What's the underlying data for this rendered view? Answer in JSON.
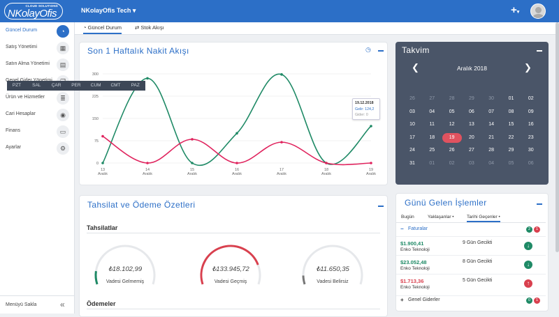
{
  "header": {
    "logo_text": "NKolayOfis",
    "logo_tagline": "CLOUD SOLUTIONS",
    "company": "NKolayOfis Tech",
    "add_label": "+"
  },
  "sidebar": {
    "items": [
      {
        "label": "Güncel Durum",
        "icon": "dashboard-icon",
        "glyph": "◔",
        "active": true
      },
      {
        "label": "Satış Yönetimi",
        "icon": "calculator-icon",
        "glyph": "▦",
        "active": false
      },
      {
        "label": "Satın Alma Yönetimi",
        "icon": "document-icon",
        "glyph": "▤",
        "active": false
      },
      {
        "label": "Genel Gider Yönetimi",
        "icon": "copy-icon",
        "glyph": "❐",
        "active": false
      },
      {
        "label": "Ürün ve Hizmetler",
        "icon": "database-icon",
        "glyph": "≣",
        "active": false
      },
      {
        "label": "Cari Hesaplar",
        "icon": "eye-icon",
        "glyph": "◉",
        "active": false
      },
      {
        "label": "Finans",
        "icon": "money-icon",
        "glyph": "▭",
        "active": false
      },
      {
        "label": "Ayarlar",
        "icon": "gears-icon",
        "glyph": "⚙",
        "active": false
      }
    ],
    "collapse_label": "Menüyü Sakla"
  },
  "tabs": [
    {
      "label": "◔ Güncel Durum",
      "active": true
    },
    {
      "label": "⇄ Stok Akışı",
      "active": false
    }
  ],
  "cashflow": {
    "title": "Son 1 Haftalık Nakit Akışı",
    "tooltip": {
      "date": "19.12.2018",
      "gelir": "Gelir: 124,2",
      "gider": "Gider: 0"
    }
  },
  "chart_data": {
    "type": "line",
    "x": [
      "13 Aralık",
      "14 Aralık",
      "15 Aralık",
      "16 Aralık",
      "17 Aralık",
      "18 Aralık",
      "19 Aralık"
    ],
    "yticks": [
      0,
      75,
      150,
      225,
      300
    ],
    "ylim": [
      0,
      300
    ],
    "series": [
      {
        "name": "Gelir",
        "color": "#1f8a66",
        "values": [
          0,
          285,
          0,
          100,
          298,
          0,
          124.2
        ]
      },
      {
        "name": "Gider",
        "color": "#e0245e",
        "values": [
          90,
          0,
          80,
          0,
          70,
          0,
          0
        ]
      }
    ]
  },
  "calendar": {
    "title": "Takvim",
    "month": "Aralık 2018",
    "days": [
      "PZT",
      "SAL",
      "ÇAR",
      "PER",
      "CUM",
      "CMT",
      "PAZ"
    ],
    "weeks": [
      [
        "26",
        "27",
        "28",
        "29",
        "30",
        "01",
        "02"
      ],
      [
        "03",
        "04",
        "05",
        "06",
        "07",
        "08",
        "09"
      ],
      [
        "10",
        "11",
        "12",
        "13",
        "14",
        "15",
        "16"
      ],
      [
        "17",
        "18",
        "19",
        "20",
        "21",
        "22",
        "23"
      ],
      [
        "24",
        "25",
        "26",
        "27",
        "28",
        "29",
        "30"
      ],
      [
        "31",
        "01",
        "02",
        "03",
        "04",
        "05",
        "06"
      ]
    ],
    "today": "19"
  },
  "summary": {
    "title": "Tahsilat ve Ödeme Özetleri",
    "collections_title": "Tahsilatlar",
    "payments_title": "Ödemeler",
    "gauges": [
      {
        "value": "₺18.102,99",
        "label": "Vadesi Gelmemiş",
        "color": "#1f8a66",
        "fraction": 0.12
      },
      {
        "value": "₺133.945,72",
        "label": "Vadesi Geçmiş",
        "color": "#d9404e",
        "fraction": 0.82
      },
      {
        "value": "₺11.650,35",
        "label": "Vadesi Belirsiz",
        "color": "#777777",
        "fraction": 0.08
      }
    ]
  },
  "daily": {
    "title": "Günü Gelen İşlemler",
    "tabs": [
      "Bugün",
      "Yaklaşanlar •",
      "Tarihi Geçenler •"
    ],
    "invoices_label": "Faturalar",
    "invoice_badges": [
      "2",
      "1"
    ],
    "rows": [
      {
        "amount": "$1.900,41",
        "company": "Enko Teknoloji",
        "late": "9 Gün Gecikti",
        "color": "#1f8a66",
        "arrow": "↓"
      },
      {
        "amount": "$23.052,48",
        "company": "Enko Teknoloji",
        "late": "8 Gün Gecikti",
        "color": "#1f8a66",
        "arrow": "↓"
      },
      {
        "amount": "$1.713,36",
        "company": "Enko Teknoloji",
        "late": "5 Gün Gecikti",
        "color": "#d9404e",
        "arrow": "↑"
      }
    ],
    "general_label": "Genel Giderler",
    "general_badges": [
      "0",
      "1"
    ]
  }
}
